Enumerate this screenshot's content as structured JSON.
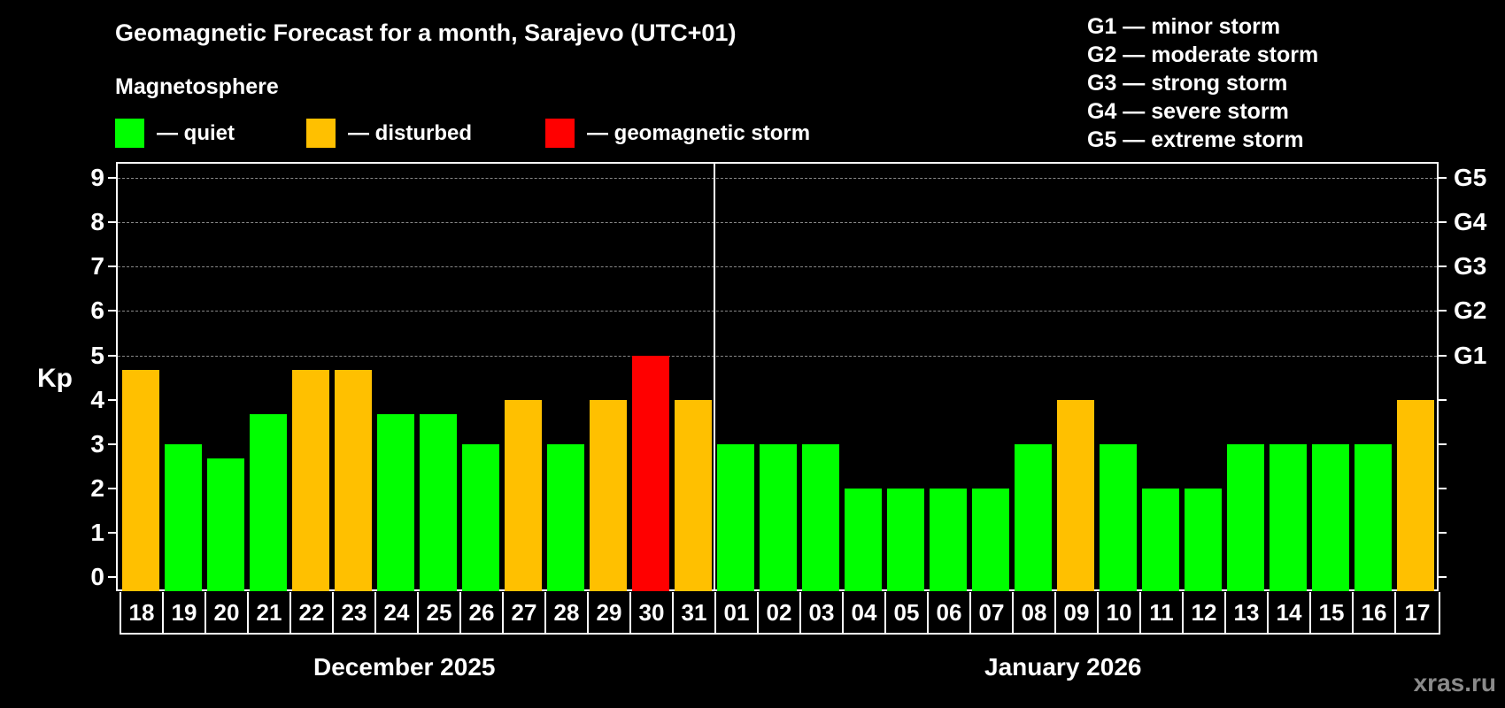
{
  "header": {
    "title": "Geomagnetic Forecast for a month, Sarajevo (UTC+01)",
    "subtitle": "Magnetosphere"
  },
  "legend": [
    {
      "label": "— quiet",
      "color": "#00ff00"
    },
    {
      "label": "— disturbed",
      "color": "#ffc000"
    },
    {
      "label": "— geomagnetic storm",
      "color": "#ff0000"
    }
  ],
  "storm_scale": [
    "G1 — minor storm",
    "G2 — moderate storm",
    "G3 — strong storm",
    "G4 — severe storm",
    "G5 — extreme storm"
  ],
  "axis": {
    "ylabel": "Kp",
    "yticks": [
      "0",
      "1",
      "2",
      "3",
      "4",
      "5",
      "6",
      "7",
      "8",
      "9"
    ],
    "right_labels": [
      {
        "kp": 5,
        "label": "G1"
      },
      {
        "kp": 6,
        "label": "G2"
      },
      {
        "kp": 7,
        "label": "G3"
      },
      {
        "kp": 8,
        "label": "G4"
      },
      {
        "kp": 9,
        "label": "G5"
      }
    ]
  },
  "months": [
    {
      "label": "December 2025"
    },
    {
      "label": "January 2026"
    }
  ],
  "watermark": "xras.ru",
  "chart_data": {
    "type": "bar",
    "title": "Geomagnetic Forecast for a month, Sarajevo (UTC+01)",
    "xlabel": "",
    "ylabel": "Kp",
    "ylim": [
      0,
      9
    ],
    "grid": "dashed horizontal at Kp 5-9",
    "legend_position": "top",
    "categories": [
      "18",
      "19",
      "20",
      "21",
      "22",
      "23",
      "24",
      "25",
      "26",
      "27",
      "28",
      "29",
      "30",
      "31",
      "01",
      "02",
      "03",
      "04",
      "05",
      "06",
      "07",
      "08",
      "09",
      "10",
      "11",
      "12",
      "13",
      "14",
      "15",
      "16",
      "17"
    ],
    "values": [
      4.67,
      3,
      2.67,
      3.67,
      4.67,
      4.67,
      3.67,
      3.67,
      3,
      4,
      3,
      4,
      5,
      4,
      3,
      3,
      3,
      2,
      2,
      2,
      2,
      3,
      4,
      3,
      2,
      2,
      3,
      3,
      3,
      3,
      4
    ],
    "status": [
      "disturbed",
      "quiet",
      "quiet",
      "quiet",
      "disturbed",
      "disturbed",
      "quiet",
      "quiet",
      "quiet",
      "disturbed",
      "quiet",
      "disturbed",
      "storm",
      "disturbed",
      "quiet",
      "quiet",
      "quiet",
      "quiet",
      "quiet",
      "quiet",
      "quiet",
      "quiet",
      "disturbed",
      "quiet",
      "quiet",
      "quiet",
      "quiet",
      "quiet",
      "quiet",
      "quiet",
      "disturbed"
    ],
    "month_groups": [
      {
        "label": "December 2025",
        "from": "18",
        "to": "31"
      },
      {
        "label": "January 2026",
        "from": "01",
        "to": "17"
      }
    ],
    "status_colors": {
      "quiet": "#00ff00",
      "disturbed": "#ffc000",
      "storm": "#ff0000"
    }
  }
}
